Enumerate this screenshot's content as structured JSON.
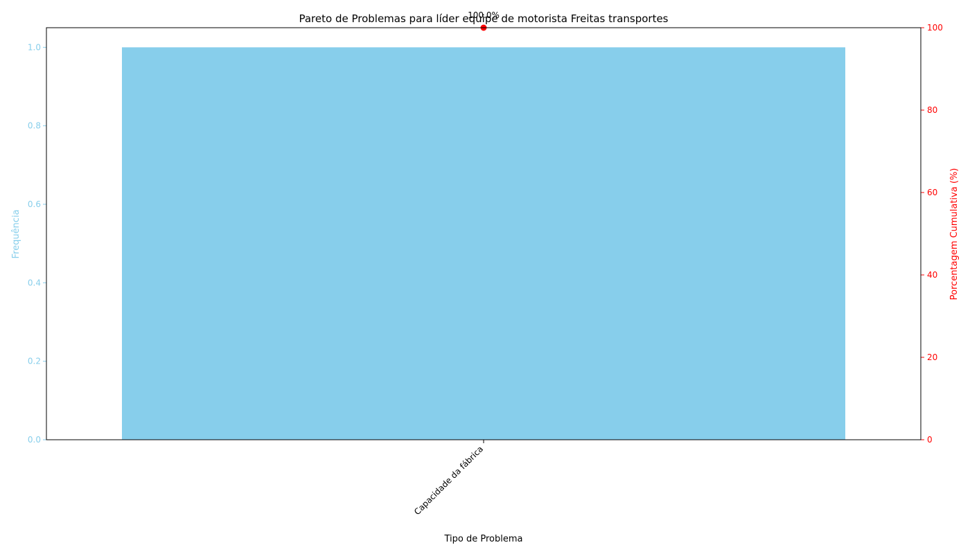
{
  "chart_data": {
    "type": "bar",
    "title": "Pareto de Problemas para líder equipe de motorista Freitas transportes",
    "xlabel": "Tipo de Problema",
    "ylabel": "Frequência",
    "y2label": "Porcentagem Cumulativa (%)",
    "categories": [
      "Capacidade da fábrica"
    ],
    "series": [
      {
        "values": [
          1
        ],
        "axis": "left",
        "kind": "bar"
      },
      {
        "values": [
          100.0
        ],
        "axis": "right",
        "kind": "line"
      }
    ],
    "point_labels": [
      "100.0%"
    ],
    "ylim": [
      0,
      1.05
    ],
    "y2lim": [
      0,
      100
    ],
    "yticks": [
      "0.0",
      "0.2",
      "0.4",
      "0.6",
      "0.8",
      "1.0"
    ],
    "y2ticks": [
      "0",
      "20",
      "40",
      "60",
      "80",
      "100"
    ],
    "colors": {
      "bar": "#87ceeb",
      "line": "#ff0000",
      "left_axis": "#87ceeb",
      "right_axis": "#ff0000"
    },
    "grid": false,
    "legend": "none"
  }
}
